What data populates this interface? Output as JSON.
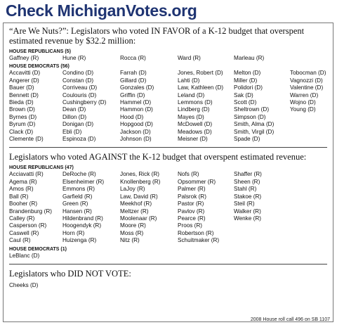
{
  "header": {
    "title": "Check MichiganVotes.org"
  },
  "sections": [
    {
      "title": "“Are We Nuts?”: Legislators who voted IN FAVOR of a K-12 budget that overspent estimated revenue by $32.2 million:",
      "groups": [
        {
          "label": "HOUSE REPUBLICANS (5)",
          "columns": [
            [
              "Gaffney (R)"
            ],
            [
              "Hune (R)"
            ],
            [
              "Rocca (R)"
            ],
            [
              "Ward (R)"
            ],
            [
              "Marleau (R)"
            ]
          ]
        },
        {
          "label": "HOUSE DEMOCRATS (56)",
          "columns": [
            [
              "Accavitti (D)",
              "Angerer (D)",
              "Bauer (D)",
              "Bennett (D)",
              "Bieda (D)",
              "Brown (D)",
              "Byrnes (D)",
              "Byrum (D)",
              "Clack (D)",
              "Clemente (D)"
            ],
            [
              "Condino (D)",
              "Constan (D)",
              "Corriveau (D)",
              "Coulouris (D)",
              "Cushingberry (D)",
              "Dean (D)",
              "Dillon (D)",
              "Donigan (D)",
              "Ebli (D)",
              "Espinoza (D)"
            ],
            [
              "Farrah (D)",
              "Gillard (D)",
              "Gonzales (D)",
              "Griffin (D)",
              "Hammel (D)",
              "Hammon (D)",
              "Hood (D)",
              "Hopgood (D)",
              "Jackson (D)",
              "Johnson (D)"
            ],
            [
              "Jones, Robert (D)",
              "Lahti (D)",
              "Law, Kathleen (D)",
              "Leland (D)",
              "Lemmons (D)",
              "Lindberg (D)",
              "Mayes (D)",
              "McDowell (D)",
              "Meadows (D)",
              "Meisner (D)"
            ],
            [
              "Melton (D)",
              "Miller (D)",
              "Polidori (D)",
              "Sak (D)",
              "Scott (D)",
              "Sheltrown (D)",
              "Simpson (D)",
              "Smith, Alma (D)",
              "Smith, Virgil (D)",
              "Spade (D)"
            ],
            [
              "Tobocman (D)",
              "Vagnozzi (D)",
              "Valentine (D)",
              "Warren (D)",
              "Wojno (D)",
              "Young (D)"
            ]
          ]
        }
      ]
    },
    {
      "title": "Legislators who voted AGAINST the K-12 budget that overspent estimated revenue:",
      "groups": [
        {
          "label": "HOUSE REPUBLICANS (47)",
          "columns": [
            [
              "Acciavatti (R)",
              "Agema (R)",
              "Amos (R)",
              "Ball (R)",
              "Booher (R)",
              "Brandenburg (R)",
              "Calley (R)",
              "Casperson (R)",
              "Caswell (R)",
              "Caul (R)"
            ],
            [
              "DeRoche (R)",
              "Elsenheimer (R)",
              "Emmons (R)",
              "Garfield (R)",
              "Green (R)",
              "Hansen (R)",
              "Hildenbrand (R)",
              "Hoogendyk (R)",
              "Horn (R)",
              "Huizenga (R)"
            ],
            [
              "Jones, Rick (R)",
              "Knollenberg (R)",
              "LaJoy (R)",
              "Law, David (R)",
              "Meekhof (R)",
              "Meltzer (R)",
              "Moolenaar (R)",
              "Moore (R)",
              "Moss (R)",
              "Nitz (R)"
            ],
            [
              "Nofs (R)",
              "Opsommer (R)",
              "Palmer (R)",
              "Palsrok (R)",
              "Pastor (R)",
              "Pavlov (R)",
              "Pearce (R)",
              "Proos (R)",
              "Robertson (R)",
              "Schuitmaker (R)"
            ],
            [
              "Shaffer (R)",
              "Sheen (R)",
              "Stahl (R)",
              "Stakoe (R)",
              "Steil (R)",
              "Walker (R)",
              "Wenke (R)"
            ]
          ]
        },
        {
          "label": "HOUSE DEMOCRATS (1)",
          "columns": [
            [
              "LeBlanc (D)"
            ]
          ]
        }
      ]
    },
    {
      "title": "Legislators who DID NOT VOTE:",
      "groups": [
        {
          "columns": [
            [
              "Cheeks (D)"
            ]
          ]
        }
      ]
    }
  ],
  "footer": "2008 House roll call 496 on SB 1107"
}
